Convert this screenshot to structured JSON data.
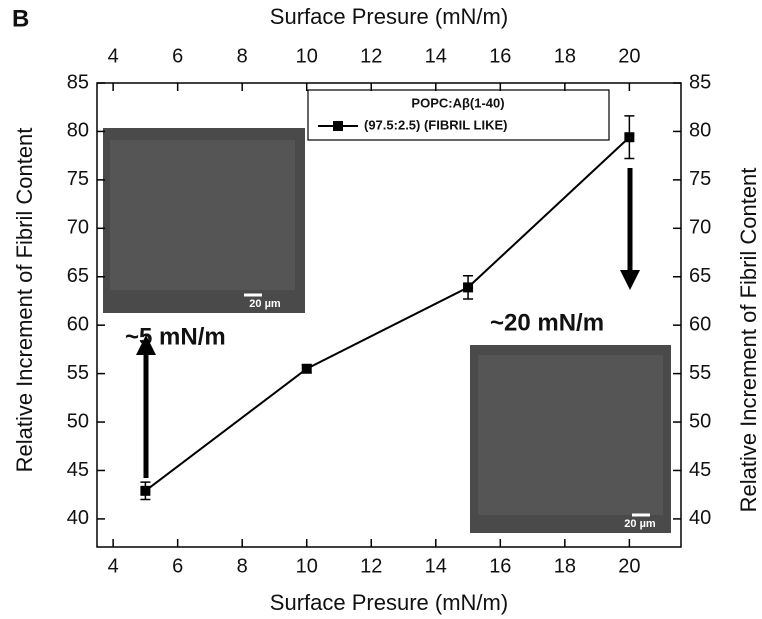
{
  "chart_data": {
    "type": "line",
    "panel": "B",
    "x_label": "Surface Presure (mN/m)",
    "x2_label": "Surface Presure (mN/m)",
    "y_label": "Relative Increment of Fibril Content",
    "y2_label": "Relative Increment of Fibril Content",
    "x": [
      5,
      10,
      15,
      20
    ],
    "series": [
      {
        "name": "(97.5:2.5) (FIBRIL LIKE)",
        "color": "#000000",
        "values": [
          42.9,
          55.5,
          63.9,
          79.4
        ],
        "errors": [
          0.9,
          0.4,
          1.2,
          2.2
        ]
      }
    ],
    "legend_title": "POPC:Aβ(1-40)",
    "xlim": [
      3.5,
      21.6
    ],
    "xticks": [
      4,
      6,
      8,
      10,
      12,
      14,
      16,
      18,
      20
    ],
    "x2ticks": [
      4,
      6,
      8,
      10,
      12,
      14,
      16,
      18,
      20
    ],
    "ylim": [
      37.1,
      85
    ],
    "yticks": [
      40,
      45,
      50,
      55,
      60,
      65,
      70,
      75,
      80,
      85
    ],
    "y2lim": [
      37.1,
      85
    ],
    "y2ticks": [
      40,
      45,
      50,
      55,
      60,
      65,
      70,
      75,
      80,
      85
    ],
    "annotations": [
      "~5 mN/m",
      "~20 mN/m"
    ],
    "scale_bars": [
      "20 µm",
      "20 µm"
    ]
  }
}
